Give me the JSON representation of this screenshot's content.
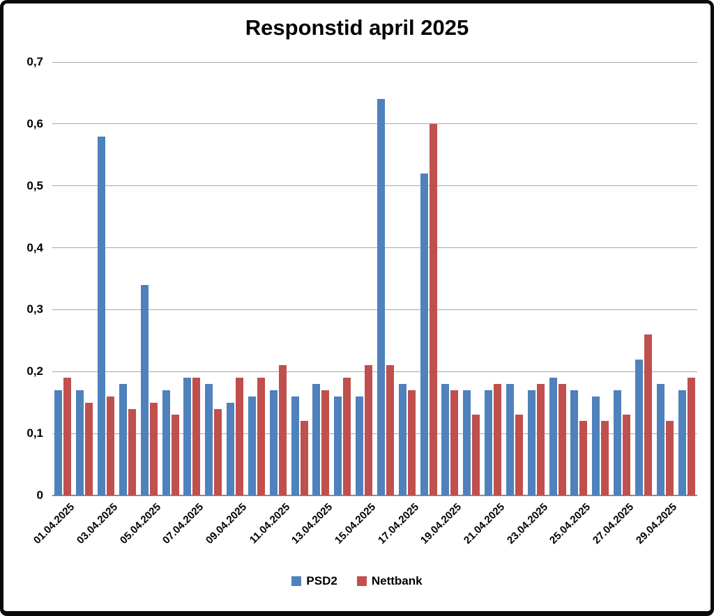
{
  "chart_data": {
    "type": "bar",
    "title": "Responstid april 2025",
    "categories": [
      "01.04.2025",
      "02.04.2025",
      "03.04.2025",
      "04.04.2025",
      "05.04.2025",
      "06.04.2025",
      "07.04.2025",
      "08.04.2025",
      "09.04.2025",
      "10.04.2025",
      "11.04.2025",
      "12.04.2025",
      "13.04.2025",
      "14.04.2025",
      "15.04.2025",
      "16.04.2025",
      "17.04.2025",
      "18.04.2025",
      "19.04.2025",
      "20.04.2025",
      "21.04.2025",
      "22.04.2025",
      "23.04.2025",
      "24.04.2025",
      "25.04.2025",
      "26.04.2025",
      "27.04.2025",
      "28.04.2025",
      "29.04.2025",
      "30.04.2025"
    ],
    "series": [
      {
        "name": "PSD2",
        "color": "#4F81BD",
        "values": [
          0.17,
          0.17,
          0.58,
          0.18,
          0.34,
          0.17,
          0.19,
          0.18,
          0.15,
          0.16,
          0.17,
          0.16,
          0.18,
          0.16,
          0.16,
          0.64,
          0.18,
          0.52,
          0.18,
          0.17,
          0.17,
          0.18,
          0.17,
          0.19,
          0.17,
          0.16,
          0.17,
          0.22,
          0.18,
          0.17
        ]
      },
      {
        "name": "Nettbank",
        "color": "#C0504D",
        "values": [
          0.19,
          0.15,
          0.16,
          0.14,
          0.15,
          0.13,
          0.19,
          0.14,
          0.19,
          0.19,
          0.21,
          0.12,
          0.17,
          0.19,
          0.21,
          0.21,
          0.17,
          0.6,
          0.17,
          0.13,
          0.18,
          0.13,
          0.18,
          0.18,
          0.12,
          0.12,
          0.13,
          0.26,
          0.12,
          0.19
        ]
      }
    ],
    "ylim": [
      0,
      0.7
    ],
    "ytick_labels": [
      "0",
      "0,1",
      "0,2",
      "0,3",
      "0,4",
      "0,5",
      "0,6",
      "0,7"
    ],
    "xtick_labels": [
      "01.04.2025",
      "03.04.2025",
      "05.04.2025",
      "07.04.2025",
      "09.04.2025",
      "11.04.2025",
      "13.04.2025",
      "15.04.2025",
      "17.04.2025",
      "19.04.2025",
      "21.04.2025",
      "23.04.2025",
      "25.04.2025",
      "27.04.2025",
      "29.04.2025"
    ],
    "x_label_interval": 2,
    "grid": true,
    "legend_position": "bottom",
    "colors": {
      "gridline": "#A6A6A6",
      "axis_line": "#8C8C8C",
      "text": "#000000",
      "frame": "#0A0A0A",
      "background": "#FFFFFF"
    }
  }
}
